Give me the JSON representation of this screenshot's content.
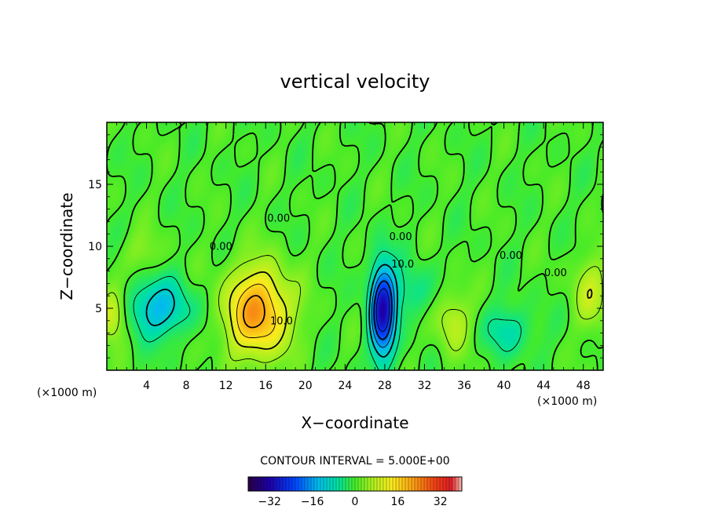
{
  "chart_data": {
    "type": "contour",
    "title": "vertical velocity",
    "xlabel": "X−coordinate",
    "ylabel": "Z−coordinate",
    "x_unit_left": "(×1000 m)",
    "x_unit_right": "(×1000 m)",
    "xlim": [
      0,
      50
    ],
    "ylim": [
      0,
      20
    ],
    "x_ticks": [
      4,
      8,
      12,
      16,
      20,
      24,
      28,
      32,
      36,
      40,
      44,
      48
    ],
    "y_ticks": [
      5,
      10,
      15
    ],
    "contour_interval_text": "CONTOUR INTERVAL = 5.000E+00",
    "contour_labels": [
      {
        "x": 17.6,
        "y": 3.7,
        "text": "10.0"
      },
      {
        "x": 29.8,
        "y": 8.3,
        "text": "10.0"
      },
      {
        "x": 17.3,
        "y": 12.0,
        "text": "0.00"
      },
      {
        "x": 11.5,
        "y": 9.7,
        "text": "0.00"
      },
      {
        "x": 29.6,
        "y": 10.5,
        "text": "0.00"
      },
      {
        "x": 40.7,
        "y": 9.0,
        "text": "0.00"
      },
      {
        "x": 45.2,
        "y": 7.6,
        "text": "0.00"
      }
    ],
    "features": [
      {
        "kind": "updraft",
        "x": 15.2,
        "y": 4.7,
        "value": 22,
        "sx": 2.3,
        "sy": 2.5
      },
      {
        "kind": "downdraft",
        "x": 27.8,
        "y": 4.8,
        "value": -30,
        "sx": 0.9,
        "sy": 2.6
      },
      {
        "kind": "downdraft",
        "x": 5.2,
        "y": 5.0,
        "value": -13,
        "sx": 2.3,
        "sy": 1.6
      },
      {
        "kind": "updraft",
        "x": 0.5,
        "y": 4.5,
        "value": 12,
        "sx": 1.0,
        "sy": 1.5
      },
      {
        "kind": "downdraft",
        "x": 40.5,
        "y": 3.2,
        "value": -7,
        "sx": 1.8,
        "sy": 1.4
      },
      {
        "kind": "updraft",
        "x": 34.8,
        "y": 4.0,
        "value": 8,
        "sx": 1.3,
        "sy": 1.8
      },
      {
        "kind": "updraft",
        "x": 48.8,
        "y": 6.3,
        "value": 8,
        "sx": 1.3,
        "sy": 2.0
      },
      {
        "kind": "downdraft",
        "x": 30.8,
        "y": 6.3,
        "value": -6,
        "sx": 1.5,
        "sy": 1.5
      },
      {
        "kind": "updraft",
        "x": 3.5,
        "y": 9.5,
        "value": 4,
        "sx": 1.5,
        "sy": 1.2
      }
    ],
    "colorbar": {
      "ticks": [
        -32,
        -16,
        0,
        16,
        32
      ],
      "range": [
        -40,
        40
      ],
      "tick_labels": [
        "−32",
        "−16",
        "0",
        "16",
        "32"
      ]
    }
  }
}
